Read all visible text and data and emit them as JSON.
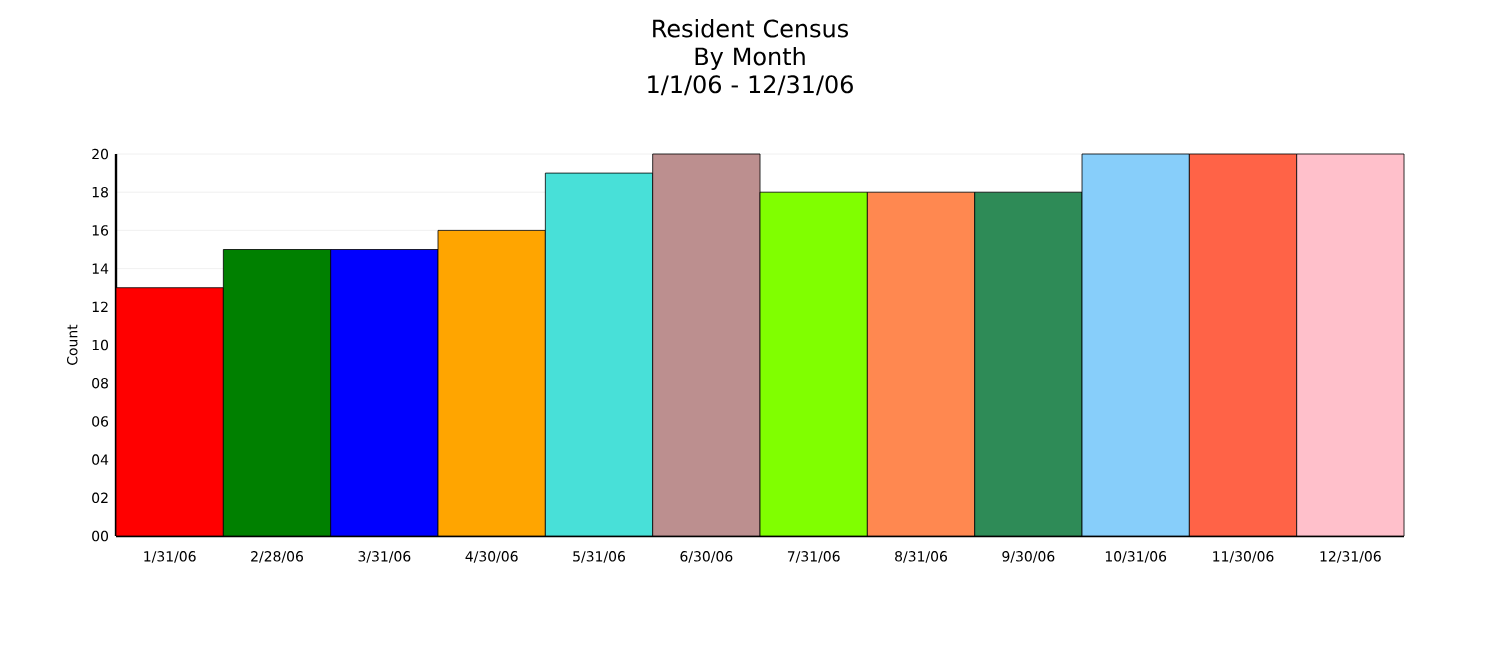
{
  "chart_data": {
    "type": "bar",
    "title": "Resident Census",
    "subtitle": "By Month\n1/1/06 - 12/31/06",
    "ylabel": "Count",
    "categories": [
      "1/31/06",
      "2/28/06",
      "3/31/06",
      "4/30/06",
      "5/31/06",
      "6/30/06",
      "7/31/06",
      "8/31/06",
      "9/30/06",
      "10/31/06",
      "11/30/06",
      "12/31/06"
    ],
    "values": [
      13,
      15,
      15,
      16,
      19,
      20,
      18,
      18,
      18,
      20,
      20,
      20
    ],
    "colors": [
      "#ff0000",
      "#008000",
      "#0000ff",
      "#ffa500",
      "#48e0d8",
      "#bc8f8f",
      "#80ff00",
      "#ff8850",
      "#2e8b57",
      "#87cefa",
      "#ff6347",
      "#ffc0cb"
    ],
    "ylim": [
      0,
      20
    ],
    "yticks": [
      {
        "value": 0,
        "label": "00"
      },
      {
        "value": 2,
        "label": "02"
      },
      {
        "value": 4,
        "label": "04"
      },
      {
        "value": 6,
        "label": "06"
      },
      {
        "value": 8,
        "label": "08"
      },
      10,
      12,
      14,
      16,
      18,
      20
    ],
    "grid": "y"
  }
}
